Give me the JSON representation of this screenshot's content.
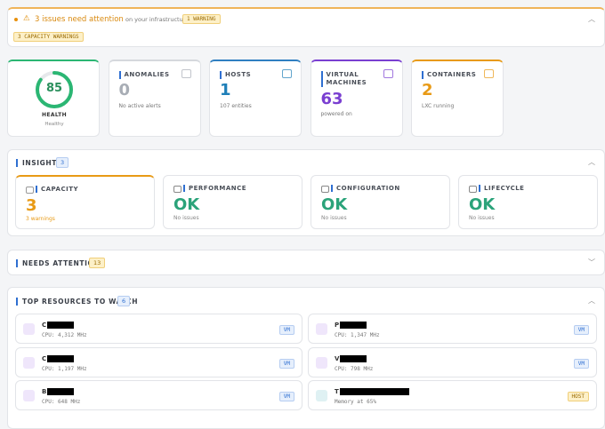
{
  "alert": {
    "title": "3 issues need attention",
    "subtitle": "on your infrastructure",
    "badge": "1 WARNING",
    "tag": "3 CAPACITY WARNINGS"
  },
  "stats": [
    {
      "label": "HEALTH",
      "value": 85,
      "note": "Healthy"
    },
    {
      "label": "ANOMALIES",
      "value": 0,
      "note": "No active alerts"
    },
    {
      "label": "HOSTS",
      "value": 1,
      "note": "107 entities"
    },
    {
      "label": "VIRTUAL MACHINES",
      "value": 63,
      "note": "powered on"
    },
    {
      "label": "CONTAINERS",
      "value": 2,
      "note": "LXC running"
    }
  ],
  "insights": {
    "title": "INSIGHTS",
    "count": 3,
    "cards": [
      {
        "label": "CAPACITY",
        "value": "3",
        "note": "3 warnings"
      },
      {
        "label": "PERFORMANCE",
        "value": "OK",
        "note": "No issues"
      },
      {
        "label": "CONFIGURATION",
        "value": "OK",
        "note": "No issues"
      },
      {
        "label": "LIFECYCLE",
        "value": "OK",
        "note": "No issues"
      }
    ]
  },
  "needs_attention": {
    "title": "NEEDS ATTENTION",
    "count": 13
  },
  "top_resources": {
    "title": "TOP RESOURCES TO WATCH",
    "count": 6,
    "items": [
      {
        "name": "C",
        "detail": "CPU: 4,312 MHz",
        "type": "VM"
      },
      {
        "name": "P",
        "detail": "CPU: 1,347 MHz",
        "type": "VM"
      },
      {
        "name": "C",
        "detail": "CPU: 1,197 MHz",
        "type": "VM"
      },
      {
        "name": "V",
        "detail": "CPU: 798 MHz",
        "type": "VM"
      },
      {
        "name": "B",
        "detail": "CPU: 648 MHz",
        "type": "VM"
      },
      {
        "name": "T",
        "detail": "Memory at 65%",
        "type": "HOST"
      }
    ]
  }
}
